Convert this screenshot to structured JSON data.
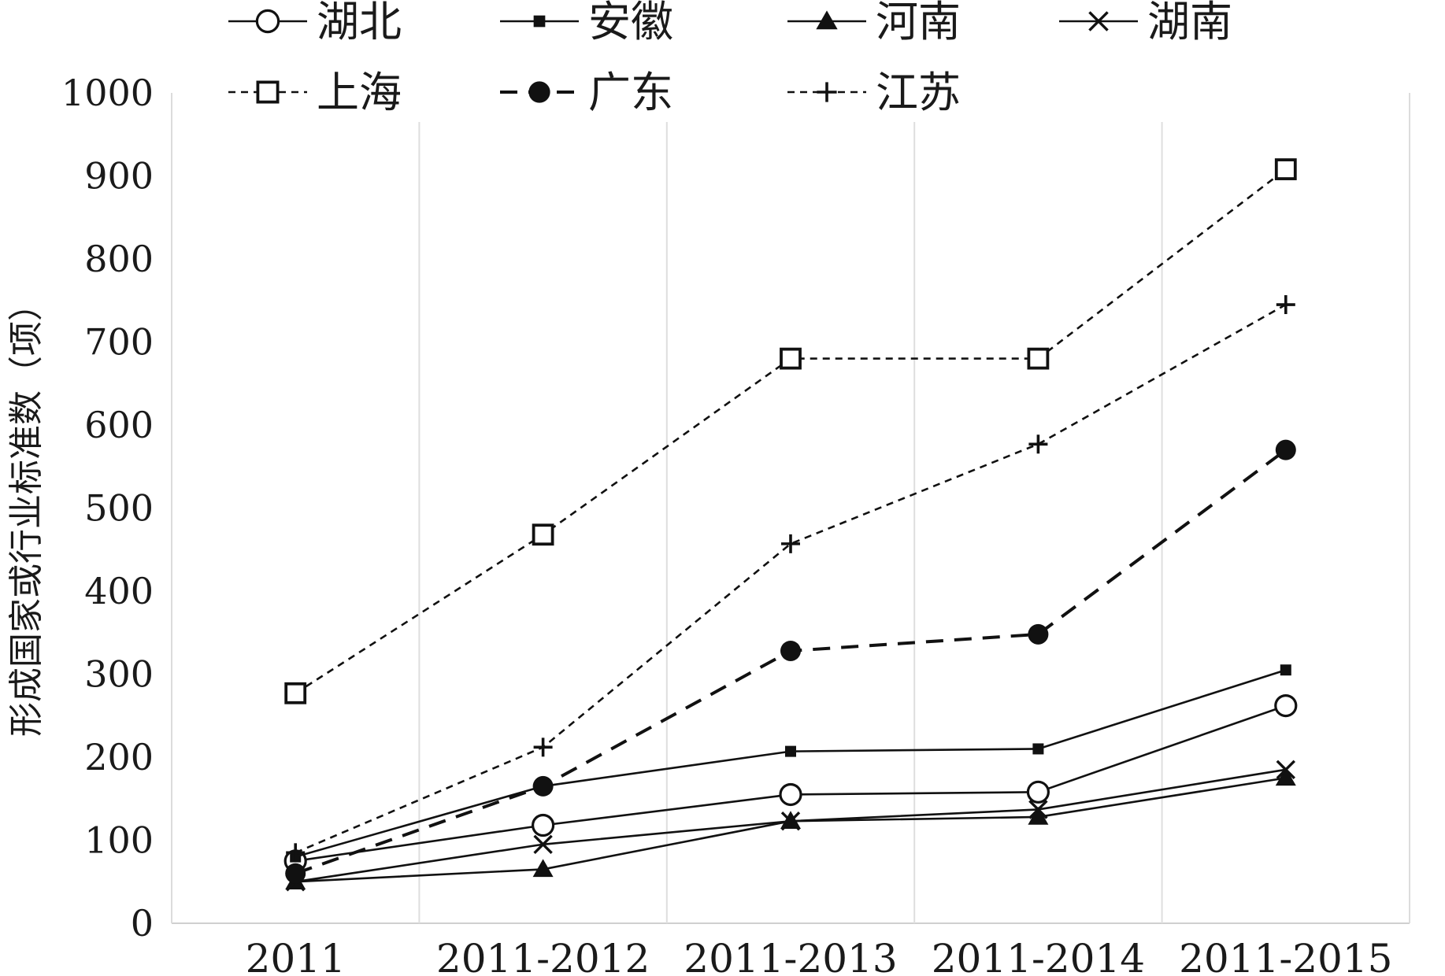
{
  "chart_data": {
    "type": "line",
    "categories": [
      "2011",
      "2011-2012",
      "2011-2013",
      "2011-2014",
      "2011-2015"
    ],
    "ylabel": "形成国家或行业标准数（项）",
    "xlabel": "",
    "ylim": [
      0,
      1000
    ],
    "yticks": [
      0,
      100,
      200,
      300,
      400,
      500,
      600,
      700,
      800,
      900,
      1000
    ],
    "ytick_labels": [
      "0",
      "100",
      "200",
      "300",
      "400",
      "500",
      "600",
      "700",
      "800",
      "900",
      "1000"
    ],
    "grid": "vertical",
    "legend_position": "top",
    "series": [
      {
        "name": "湖北",
        "values": [
          75,
          118,
          155,
          158,
          262
        ],
        "marker": "open-circle",
        "line": "solid"
      },
      {
        "name": "安徽",
        "values": [
          80,
          165,
          207,
          210,
          305
        ],
        "marker": "filled-square",
        "line": "solid"
      },
      {
        "name": "河南",
        "values": [
          50,
          65,
          123,
          128,
          175
        ],
        "marker": "filled-triangle",
        "line": "solid"
      },
      {
        "name": "湖南",
        "values": [
          50,
          95,
          123,
          137,
          185
        ],
        "marker": "cross",
        "line": "solid"
      },
      {
        "name": "上海",
        "values": [
          277,
          468,
          680,
          680,
          908
        ],
        "marker": "open-square",
        "line": "dotted"
      },
      {
        "name": "广东",
        "values": [
          60,
          165,
          328,
          348,
          570
        ],
        "marker": "filled-circle",
        "line": "dashed"
      },
      {
        "name": "江苏",
        "values": [
          85,
          212,
          457,
          577,
          745
        ],
        "marker": "plus",
        "line": "dotted"
      }
    ]
  }
}
